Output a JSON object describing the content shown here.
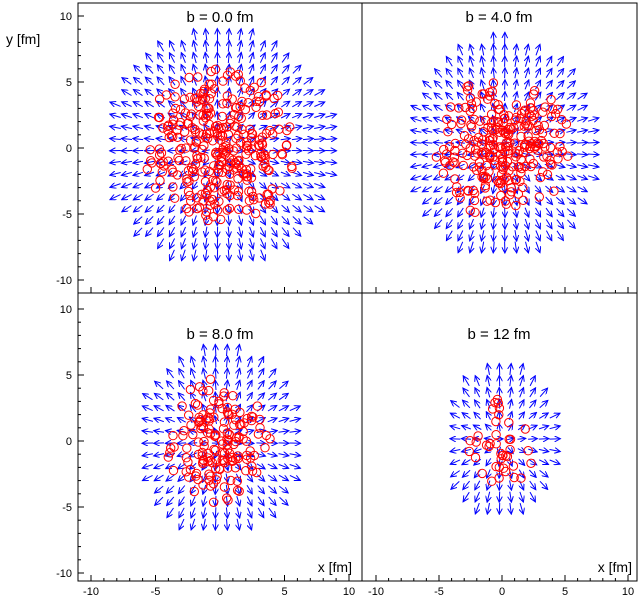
{
  "chart_data": [
    {
      "type": "scatter",
      "title": "b = 0.0 fm",
      "impact_parameter_fm": 0.0,
      "xlabel": "",
      "ylabel": "y [fm]",
      "xlim": [
        -11,
        11
      ],
      "ylim": [
        -11,
        11
      ],
      "x_ticks": [],
      "y_ticks": [
        "10",
        "5",
        "0",
        "-5",
        "-10"
      ],
      "grid": false,
      "arrow_region": {
        "a": 9.0,
        "b": 9.0
      },
      "nucleon_region": {
        "a": 6.0,
        "b": 6.0
      },
      "series": [
        {
          "marker": "arrows",
          "color": "#0000ff",
          "count": 230
        },
        {
          "marker": "open-circles",
          "color": "#ff0000",
          "count": 330
        }
      ]
    },
    {
      "type": "scatter",
      "title": "b = 4.0 fm",
      "impact_parameter_fm": 4.0,
      "xlabel": "",
      "ylabel": "",
      "xlim": [
        -11,
        11
      ],
      "ylim": [
        -11,
        11
      ],
      "x_ticks": [],
      "y_ticks": [],
      "grid": false,
      "arrow_region": {
        "a": 7.7,
        "b": 8.4
      },
      "nucleon_region": {
        "a": 5.5,
        "b": 5.4
      },
      "series": [
        {
          "marker": "arrows",
          "color": "#0000ff",
          "count": 170
        },
        {
          "marker": "open-circles",
          "color": "#ff0000",
          "count": 270
        }
      ]
    },
    {
      "type": "scatter",
      "title": "b = 8.0 fm",
      "impact_parameter_fm": 8.0,
      "xlabel": "x [fm]",
      "ylabel": "",
      "xlim": [
        -11,
        11
      ],
      "ylim": [
        -11,
        11
      ],
      "x_ticks": [
        "-10",
        "-5",
        "0",
        "5",
        "10"
      ],
      "y_ticks": [
        "10",
        "5",
        "0",
        "-5",
        "-10"
      ],
      "grid": false,
      "arrow_region": {
        "a": 6.5,
        "b": 7.2
      },
      "nucleon_region": {
        "a": 4.2,
        "b": 4.8
      },
      "series": [
        {
          "marker": "arrows",
          "color": "#0000ff",
          "count": 120
        },
        {
          "marker": "open-circles",
          "color": "#ff0000",
          "count": 160
        }
      ]
    },
    {
      "type": "scatter",
      "title": "b = 12 fm",
      "impact_parameter_fm": 12.0,
      "xlabel": "x [fm]",
      "ylabel": "",
      "xlim": [
        -11,
        11
      ],
      "ylim": [
        -11,
        11
      ],
      "x_ticks": [
        "-10",
        "-5",
        "0",
        "5",
        "10"
      ],
      "y_ticks": [],
      "grid": false,
      "arrow_region": {
        "a": 4.6,
        "b": 6.0
      },
      "nucleon_region": {
        "a": 2.7,
        "b": 4.0
      },
      "series": [
        {
          "marker": "arrows",
          "color": "#0000ff",
          "count": 70
        },
        {
          "marker": "open-circles",
          "color": "#ff0000",
          "count": 40
        }
      ]
    }
  ]
}
